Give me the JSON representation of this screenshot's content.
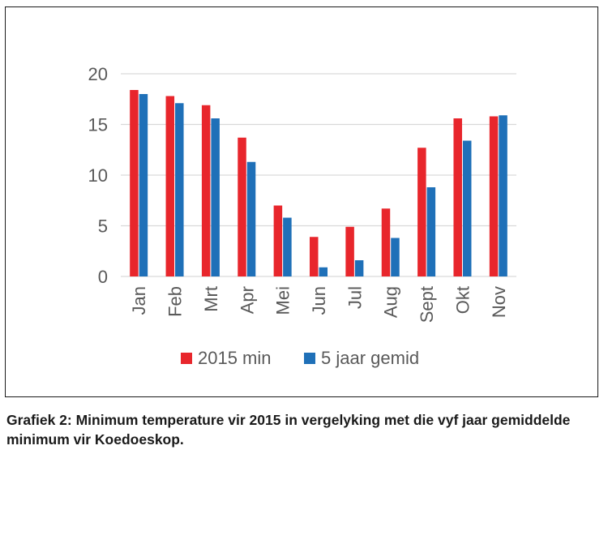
{
  "chart_data": {
    "type": "bar",
    "categories": [
      "Jan",
      "Feb",
      "Mrt",
      "Apr",
      "Mei",
      "Jun",
      "Jul",
      "Aug",
      "Sept",
      "Okt",
      "Nov"
    ],
    "series": [
      {
        "name": "2015 min",
        "color": "#e8262c",
        "values": [
          18.4,
          17.8,
          16.9,
          13.7,
          7.0,
          3.9,
          4.9,
          6.7,
          12.7,
          15.6,
          15.8
        ]
      },
      {
        "name": "5 jaar gemid",
        "color": "#1f70b8",
        "values": [
          18.0,
          17.1,
          15.6,
          11.3,
          5.8,
          0.9,
          1.6,
          3.8,
          8.8,
          13.4,
          15.9
        ]
      }
    ],
    "yticks": [
      "0",
      "5",
      "10",
      "15",
      "20"
    ],
    "ylim": [
      0,
      20
    ],
    "grid": true,
    "legend_position": "bottom"
  },
  "caption": "Grafiek 2: Minimum temperature vir 2015 in vergelyking met die vyf jaar gemiddelde minimum vir Koedoeskop."
}
